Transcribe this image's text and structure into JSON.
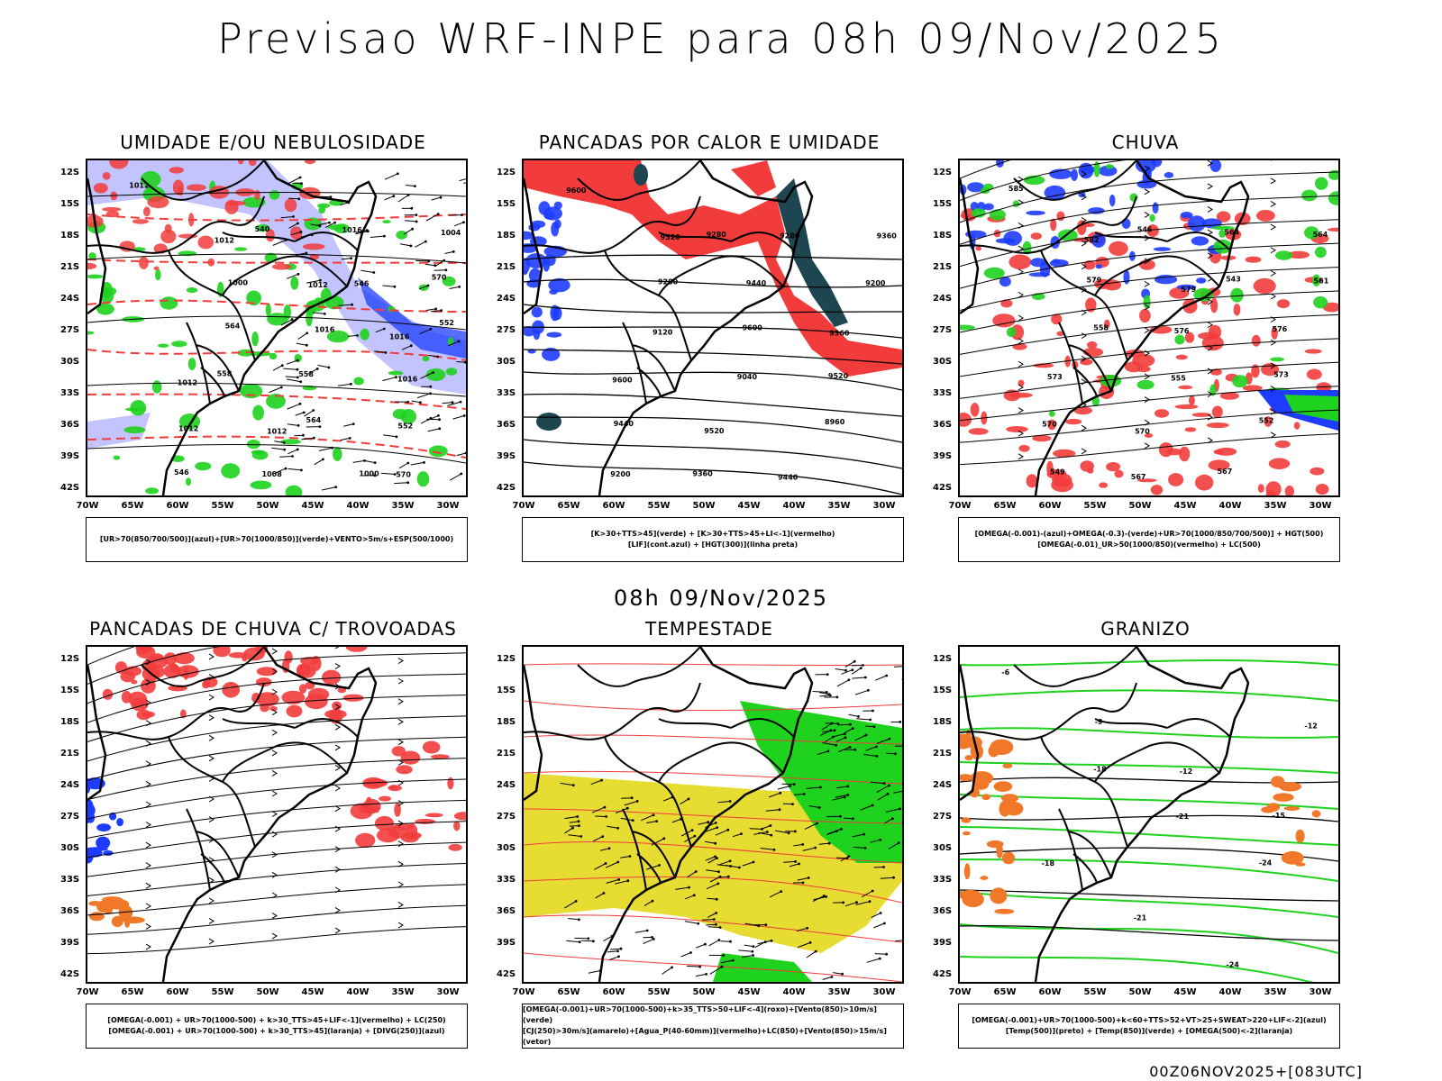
{
  "main_title": "Previsao WRF-INPE  para 08h 09/Nov/2025",
  "mid_title": "08h 09/Nov/2025",
  "footer": "00Z06NOV2025+[083UTC]",
  "axes": {
    "y": [
      "12S",
      "15S",
      "18S",
      "21S",
      "24S",
      "27S",
      "30S",
      "33S",
      "36S",
      "39S",
      "42S"
    ],
    "x": [
      "70W",
      "65W",
      "60W",
      "55W",
      "50W",
      "45W",
      "40W",
      "35W",
      "30W"
    ]
  },
  "colors": {
    "red": "#f23c3c",
    "green": "#1ed21e",
    "blue": "#1e3cff",
    "lightblue": "#b4b4ff",
    "yellow": "#e6dc32",
    "darkteal": "#1e4650",
    "orange": "#f07828"
  },
  "panels": [
    {
      "title": "UMIDADE E/OU NEBULOSIDADE",
      "legend": [
        "[UR>70(850/700/500)](azul)+[UR>70(1000/850)](verde)+VENTO>5m/s+ESP(500/1000)"
      ],
      "labels": [
        "1012",
        "1012",
        "1012",
        "1016",
        "1012",
        "1012",
        "1000",
        "1004",
        "1000",
        "1016",
        "1016",
        "1012",
        "1008",
        "1016",
        "570",
        "564",
        "558",
        "552",
        "546",
        "540",
        "546",
        "552",
        "558",
        "564",
        "570"
      ]
    },
    {
      "title": "PANCADAS POR CALOR E UMIDADE",
      "legend": [
        "[K>30+TTS>45](verde) + [K>30+TTS>45+LI<-1](vermelho)",
        "[LIF](cont.azul) + [HGT(300)](linha preta)"
      ],
      "labels": [
        "9600",
        "9520",
        "9440",
        "9360",
        "9600",
        "9520",
        "9440",
        "9360",
        "9280",
        "9600",
        "9520",
        "9440",
        "9360",
        "9280",
        "9200",
        "9120",
        "9040",
        "8960",
        "9200",
        "9280"
      ]
    },
    {
      "title": "CHUVA",
      "legend": [
        "[OMEGA(-0.001)-(azul)+OMEGA(-0.3)-(verde)+UR>70(1000/850/700/500)] + HGT(500)",
        "[OMEGA(-0.01)_UR>50(1000/850)(vermelho) + LC(500)"
      ],
      "labels": [
        "585",
        "582",
        "579",
        "576",
        "573",
        "570",
        "567",
        "564",
        "579",
        "576",
        "573",
        "570",
        "567",
        "564",
        "561",
        "558",
        "555",
        "552",
        "549",
        "546",
        "543"
      ]
    },
    {
      "title": "PANCADAS DE CHUVA C/ TROVOADAS",
      "legend": [
        "[OMEGA(-0.001) + UR>70(1000-500) + k>30_TTS>45+LIF<-1](vermelho) + LC(250)",
        "[OMEGA(-0.001) + UR>70(1000-500) + k>30_TTS>45](laranja) + [DIVG(250)](azul)"
      ],
      "labels": []
    },
    {
      "title": "TEMPESTADE",
      "legend": [
        "[OMEGA(-0.001)+UR>70(1000-500)+k>35_TTS>50+LIF<-4](roxo)+[Vento(850)>10m/s](verde)",
        "[CJ(250)>30m/s](amarelo)+[Agua_P(40-60mm)](vermelho)+LC(850)+[Vento(850)>15m/s](vetor)"
      ],
      "labels": []
    },
    {
      "title": "GRANIZO",
      "legend": [
        "[OMEGA(-0.001)+UR>70(1000-500)+k<60+TTS>52+VT>25+SWEAT>220+LIF<-2](azul)",
        "[Temp(500)](preto) + [Temp(850)](verde) + [OMEGA(500)<-2](laranja)"
      ],
      "labels": [
        "-6",
        "-9",
        "-12",
        "-15",
        "-18",
        "-21",
        "-24",
        "-12",
        "-18",
        "-21",
        "-24"
      ]
    }
  ]
}
